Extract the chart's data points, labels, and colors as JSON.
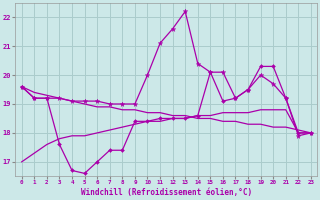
{
  "xlabel": "Windchill (Refroidissement éolien,°C)",
  "background_color": "#cce8e8",
  "grid_color": "#aacccc",
  "line_color": "#aa00aa",
  "x_ticks": [
    0,
    1,
    2,
    3,
    4,
    5,
    6,
    7,
    8,
    9,
    10,
    11,
    12,
    13,
    14,
    15,
    16,
    17,
    18,
    19,
    20,
    21,
    22,
    23
  ],
  "ylim": [
    16.5,
    22.5
  ],
  "xlim": [
    -0.5,
    23.5
  ],
  "y_ticks": [
    17,
    18,
    19,
    20,
    21,
    22
  ],
  "series_jagged_upper": [
    19.6,
    19.2,
    19.2,
    19.2,
    19.1,
    19.1,
    19.1,
    19.0,
    19.0,
    19.0,
    20.0,
    21.1,
    21.6,
    22.2,
    20.4,
    20.1,
    20.1,
    19.2,
    19.5,
    20.0,
    19.7,
    19.2,
    17.9,
    18.0
  ],
  "series_jagged_lower": [
    19.6,
    19.2,
    19.2,
    17.6,
    16.7,
    16.6,
    17.0,
    17.4,
    17.4,
    18.4,
    18.4,
    18.5,
    18.5,
    18.5,
    18.6,
    20.1,
    19.1,
    19.2,
    19.5,
    20.3,
    20.3,
    19.2,
    18.0,
    18.0
  ],
  "trend_rising": [
    17.0,
    17.3,
    17.6,
    17.8,
    17.9,
    17.9,
    18.0,
    18.1,
    18.2,
    18.3,
    18.4,
    18.4,
    18.5,
    18.5,
    18.6,
    18.6,
    18.7,
    18.7,
    18.7,
    18.8,
    18.8,
    18.8,
    18.0,
    18.0
  ],
  "trend_falling": [
    19.6,
    19.4,
    19.3,
    19.2,
    19.1,
    19.0,
    18.9,
    18.9,
    18.8,
    18.8,
    18.7,
    18.7,
    18.6,
    18.6,
    18.5,
    18.5,
    18.4,
    18.4,
    18.3,
    18.3,
    18.2,
    18.2,
    18.1,
    18.0
  ]
}
